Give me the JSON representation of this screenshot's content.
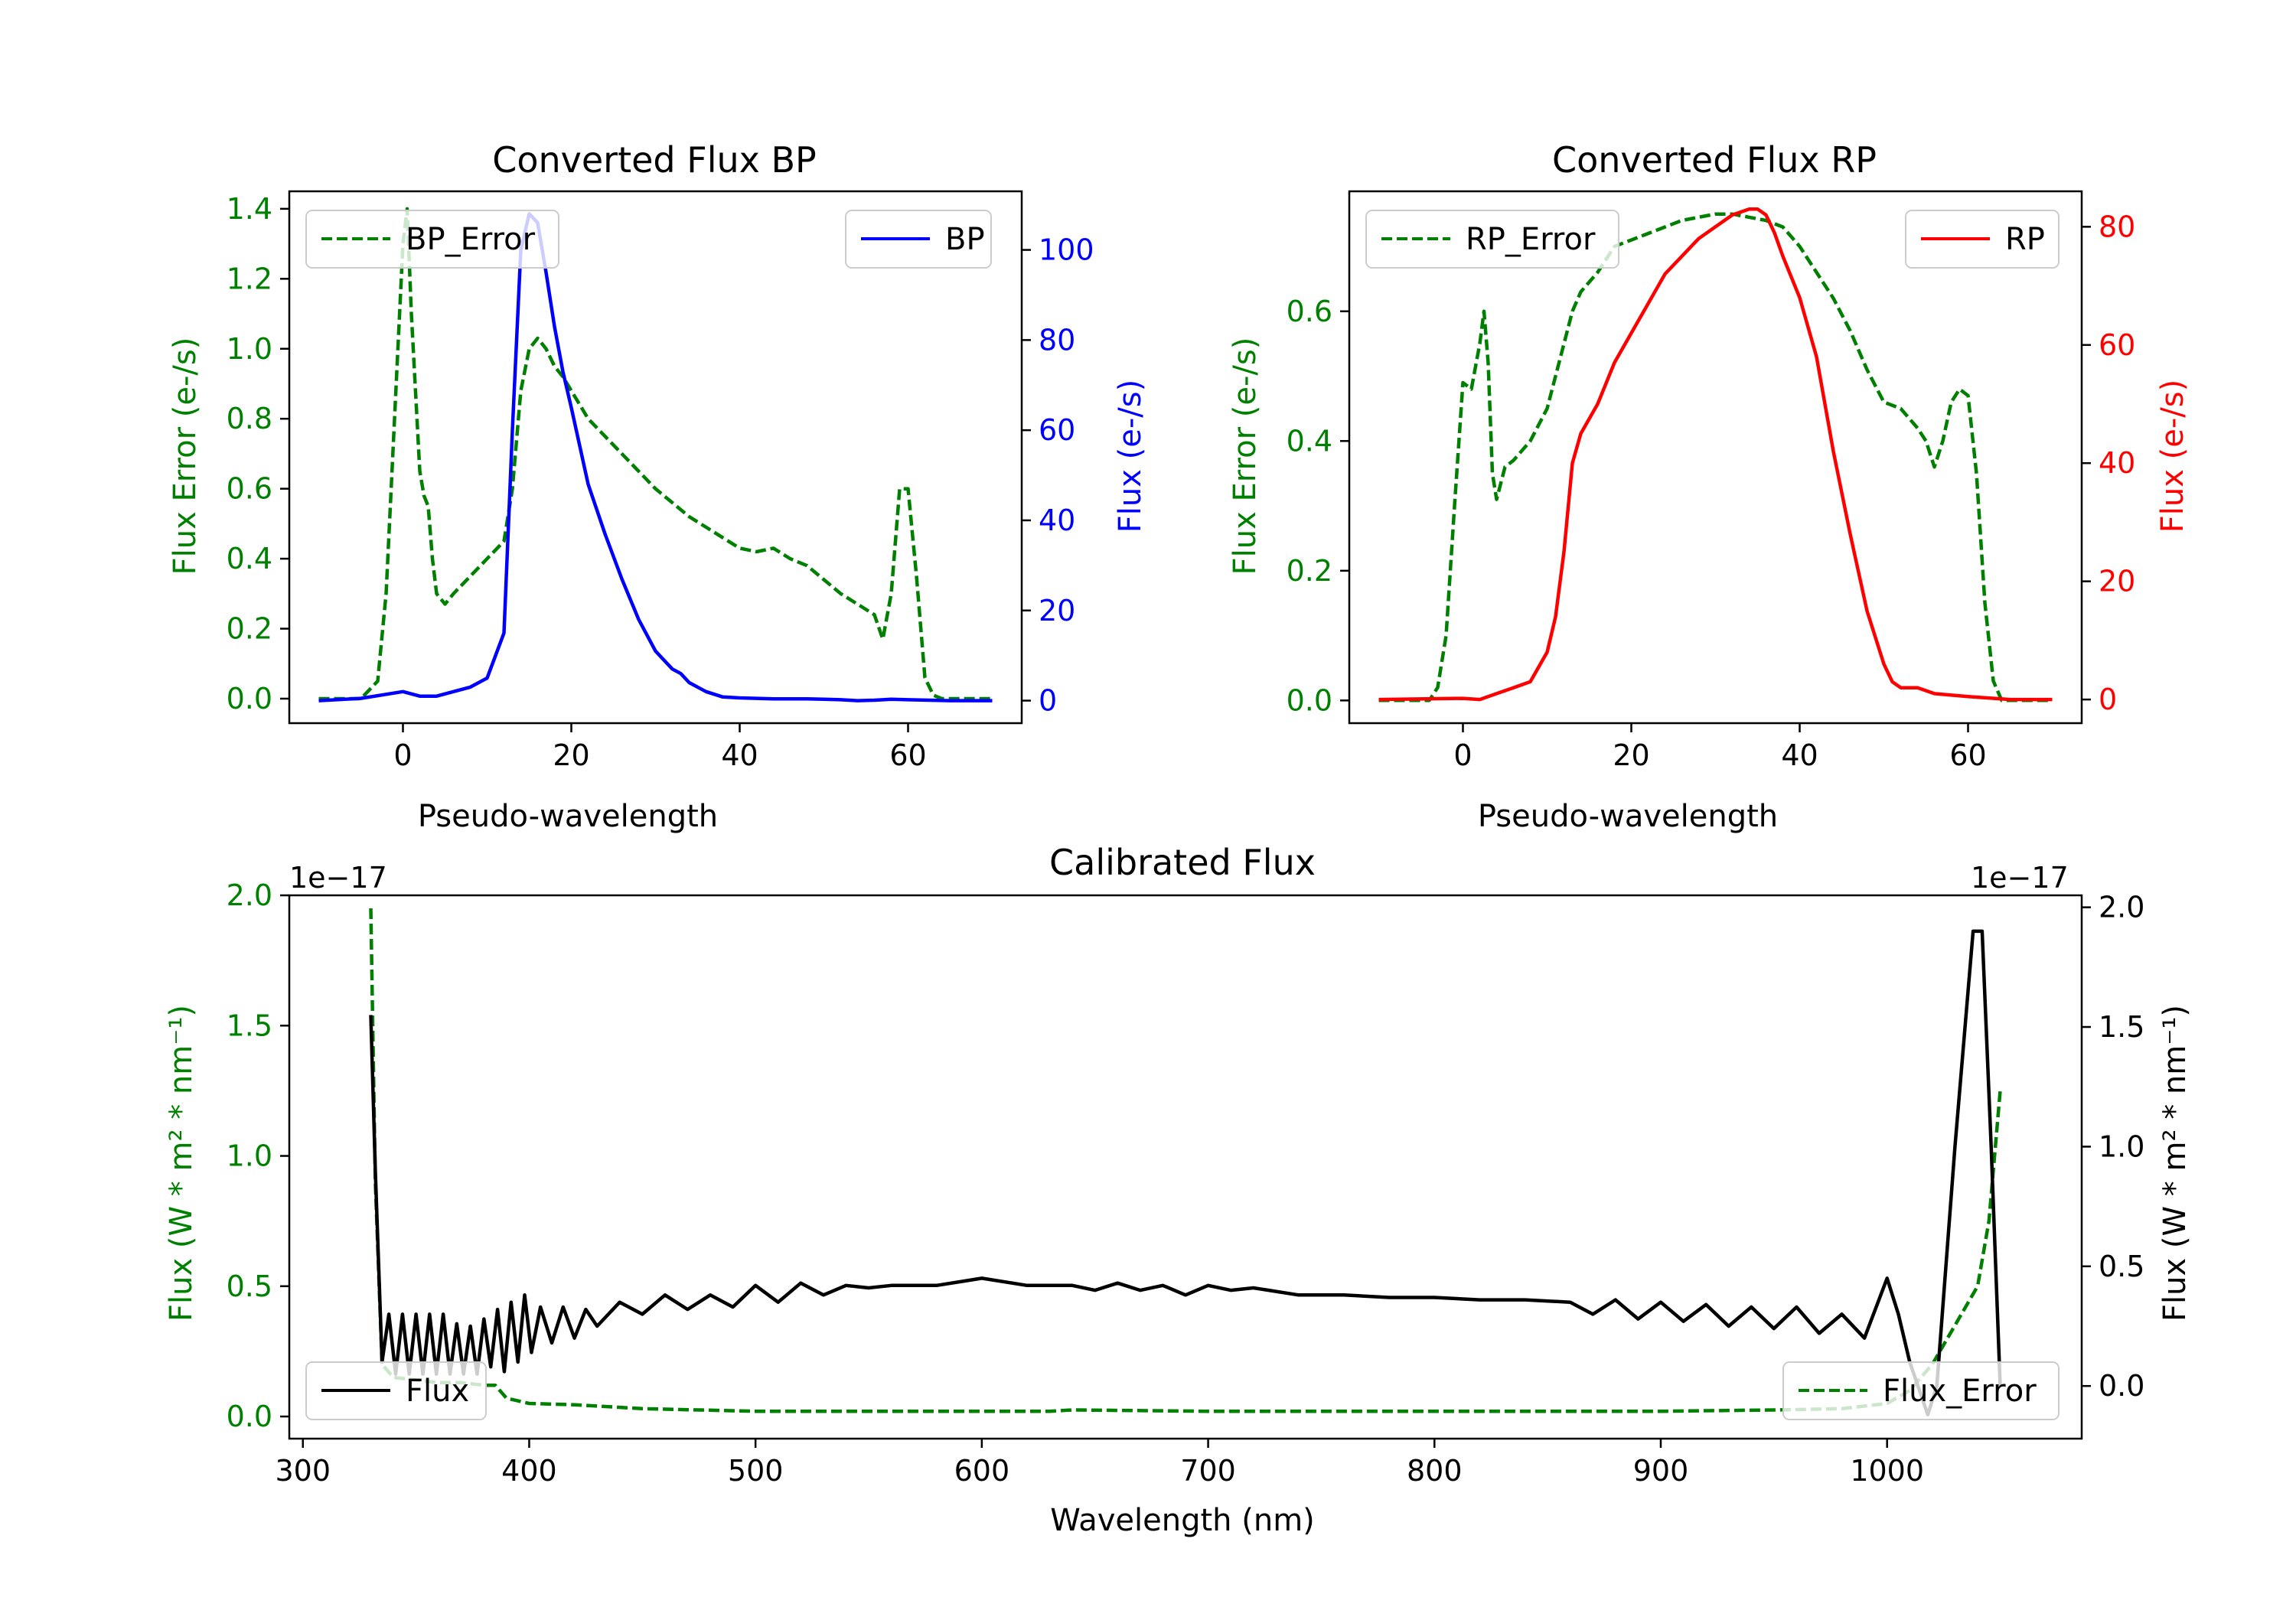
{
  "colors": {
    "green": "#008000",
    "blue": "#0000ff",
    "red": "#ff0000",
    "black": "#000000"
  },
  "chart_data": [
    {
      "id": "bp",
      "type": "line",
      "title": "Converted Flux BP",
      "xlabel": "Pseudo-wavelength",
      "ylabel_left": "Flux Error (e-/s)",
      "ylabel_right": "Flux (e-/s)",
      "xlim": [
        -13.5,
        73.5
      ],
      "ylim_left": [
        -0.07,
        1.45
      ],
      "ylim_right": [
        -5,
        113
      ],
      "x_ticks": [
        0,
        20,
        40,
        60
      ],
      "x_tick_labels": [
        "0",
        "20",
        "40",
        "60"
      ],
      "y_left_ticks": [
        0.0,
        0.2,
        0.4,
        0.6,
        0.8,
        1.0,
        1.2,
        1.4
      ],
      "y_left_tick_labels": [
        "0.0",
        "0.2",
        "0.4",
        "0.6",
        "0.8",
        "1.0",
        "1.2",
        "1.4"
      ],
      "y_right_ticks": [
        0,
        20,
        40,
        60,
        80,
        100
      ],
      "y_right_tick_labels": [
        "0",
        "20",
        "40",
        "60",
        "80",
        "100"
      ],
      "legend_left": "top-left",
      "legend_right": "top-right",
      "series": [
        {
          "name": "BP_Error",
          "axis": "left",
          "style": "dashed",
          "color": "#008000",
          "x": [
            -10,
            -5,
            -3,
            -2,
            -1,
            0,
            0.5,
            1,
            2,
            2.5,
            3,
            3.5,
            4,
            5,
            6,
            8,
            10,
            12,
            13,
            14,
            15,
            16,
            17,
            18,
            19,
            20,
            22,
            24,
            26,
            28,
            30,
            32,
            34,
            36,
            38,
            40,
            42,
            44,
            46,
            48,
            50,
            52,
            54,
            56,
            57,
            58,
            59,
            60,
            61,
            62,
            63,
            64,
            66,
            70
          ],
          "y": [
            0.0,
            0.0,
            0.05,
            0.3,
            0.8,
            1.3,
            1.4,
            1.1,
            0.65,
            0.58,
            0.55,
            0.4,
            0.3,
            0.27,
            0.3,
            0.35,
            0.4,
            0.45,
            0.6,
            0.88,
            1.0,
            1.03,
            1.0,
            0.95,
            0.92,
            0.88,
            0.8,
            0.75,
            0.7,
            0.65,
            0.6,
            0.56,
            0.52,
            0.49,
            0.46,
            0.43,
            0.42,
            0.43,
            0.4,
            0.38,
            0.34,
            0.3,
            0.27,
            0.24,
            0.17,
            0.3,
            0.6,
            0.6,
            0.35,
            0.06,
            0.01,
            0.0,
            0.0,
            0.0
          ]
        },
        {
          "name": "BP",
          "axis": "right",
          "style": "solid",
          "color": "#0000ff",
          "x": [
            -10,
            -5,
            0,
            2,
            4,
            6,
            8,
            10,
            12,
            13,
            14,
            15,
            16,
            17,
            18,
            19,
            20,
            22,
            24,
            26,
            28,
            30,
            32,
            33,
            34,
            36,
            38,
            40,
            44,
            48,
            50,
            52,
            54,
            56,
            58,
            60,
            65,
            70
          ],
          "y": [
            0,
            0.5,
            2,
            1,
            1,
            2,
            3,
            5,
            15,
            60,
            100,
            108,
            106,
            95,
            83,
            73,
            65,
            48,
            37,
            27,
            18,
            11,
            7,
            6,
            4,
            2,
            0.8,
            0.6,
            0.4,
            0.4,
            0.3,
            0.2,
            0,
            0.1,
            0.3,
            0.2,
            0,
            0
          ]
        }
      ]
    },
    {
      "id": "rp",
      "type": "line",
      "title": "Converted Flux RP",
      "xlabel": "Pseudo-wavelength",
      "ylabel_left": "Flux Error (e-/s)",
      "ylabel_right": "Flux (e-/s)",
      "xlim": [
        -13.5,
        73.5
      ],
      "ylim_left": [
        -0.035,
        0.785
      ],
      "ylim_right": [
        -4,
        86
      ],
      "x_ticks": [
        0,
        20,
        40,
        60
      ],
      "x_tick_labels": [
        "0",
        "20",
        "40",
        "60"
      ],
      "y_left_ticks": [
        0.0,
        0.2,
        0.4,
        0.6
      ],
      "y_left_tick_labels": [
        "0.0",
        "0.2",
        "0.4",
        "0.6"
      ],
      "y_right_ticks": [
        0,
        20,
        40,
        60,
        80
      ],
      "y_right_tick_labels": [
        "0",
        "20",
        "40",
        "60",
        "80"
      ],
      "legend_left": "top-left",
      "legend_right": "top-right",
      "series": [
        {
          "name": "RP_Error",
          "axis": "left",
          "style": "dashed",
          "color": "#008000",
          "x": [
            -10,
            -4,
            -3,
            -2,
            -1,
            0,
            1,
            2,
            2.5,
            3,
            3.5,
            4,
            5,
            6,
            8,
            10,
            12,
            13,
            14,
            16,
            18,
            20,
            22,
            24,
            26,
            28,
            30,
            32,
            34,
            36,
            38,
            40,
            42,
            44,
            46,
            48,
            50,
            52,
            54,
            55,
            56,
            57,
            58,
            59,
            60,
            61,
            62,
            63,
            64,
            66,
            70
          ],
          "y": [
            0.0,
            0.0,
            0.02,
            0.1,
            0.3,
            0.49,
            0.48,
            0.55,
            0.6,
            0.52,
            0.35,
            0.31,
            0.36,
            0.37,
            0.4,
            0.45,
            0.55,
            0.6,
            0.63,
            0.66,
            0.7,
            0.71,
            0.72,
            0.73,
            0.74,
            0.745,
            0.75,
            0.75,
            0.745,
            0.74,
            0.73,
            0.7,
            0.66,
            0.62,
            0.57,
            0.51,
            0.46,
            0.45,
            0.42,
            0.4,
            0.36,
            0.4,
            0.46,
            0.48,
            0.47,
            0.35,
            0.15,
            0.03,
            0.0,
            0.0,
            0.0
          ]
        },
        {
          "name": "RP",
          "axis": "right",
          "style": "solid",
          "color": "#ff0000",
          "x": [
            -10,
            0,
            2,
            4,
            6,
            8,
            10,
            11,
            12,
            13,
            14,
            16,
            18,
            20,
            22,
            24,
            26,
            28,
            30,
            32,
            34,
            35,
            36,
            37,
            38,
            40,
            42,
            44,
            46,
            48,
            50,
            51,
            52,
            54,
            56,
            60,
            65,
            70
          ],
          "y": [
            0,
            0.2,
            0,
            1,
            2,
            3,
            8,
            14,
            25,
            40,
            45,
            50,
            57,
            62,
            67,
            72,
            75,
            78,
            80,
            82,
            83,
            83,
            82,
            79,
            75,
            68,
            58,
            42,
            28,
            15,
            6,
            3,
            2,
            2,
            1,
            0.5,
            0,
            0
          ]
        }
      ]
    },
    {
      "id": "cal",
      "type": "line",
      "title": "Calibrated Flux",
      "xlabel": "Wavelength (nm)",
      "ylabel_left": "Flux (W * m² * nm⁻¹)",
      "ylabel_right": "Flux (W * m² * nm⁻¹)",
      "offset_left": "1e−17",
      "offset_right": "1e−17",
      "xlim": [
        294,
        1086
      ],
      "ylim_left": [
        -0.085,
        2.0
      ],
      "ylim_right": [
        -0.22,
        2.05
      ],
      "x_ticks": [
        300,
        400,
        500,
        600,
        700,
        800,
        900,
        1000
      ],
      "x_tick_labels": [
        "300",
        "400",
        "500",
        "600",
        "700",
        "800",
        "900",
        "1000"
      ],
      "y_left_ticks": [
        0.0,
        0.5,
        1.0,
        1.5,
        2.0
      ],
      "y_left_tick_labels": [
        "0.0",
        "0.5",
        "1.0",
        "1.5",
        "2.0"
      ],
      "y_right_ticks": [
        0.0,
        0.5,
        1.0,
        1.5,
        2.0
      ],
      "y_right_tick_labels": [
        "0.0",
        "0.5",
        "1.0",
        "1.5",
        "2.0"
      ],
      "legend_left": "bottom-left",
      "legend_right": "bottom-right",
      "series": [
        {
          "name": "Flux_Error",
          "axis": "left",
          "style": "dashed",
          "color": "#008000",
          "x": [
            330,
            332,
            335,
            340,
            350,
            360,
            370,
            380,
            385,
            390,
            400,
            420,
            450,
            500,
            550,
            600,
            630,
            640,
            700,
            800,
            900,
            950,
            980,
            1000,
            1010,
            1020,
            1030,
            1040,
            1045,
            1050
          ],
          "y": [
            1.95,
            0.9,
            0.2,
            0.15,
            0.14,
            0.13,
            0.13,
            0.12,
            0.12,
            0.07,
            0.05,
            0.045,
            0.03,
            0.02,
            0.02,
            0.02,
            0.02,
            0.025,
            0.02,
            0.02,
            0.02,
            0.025,
            0.03,
            0.05,
            0.1,
            0.2,
            0.35,
            0.5,
            0.75,
            1.25
          ]
        },
        {
          "name": "Flux",
          "axis": "right",
          "style": "solid",
          "color": "#000000",
          "x": [
            330,
            332,
            335,
            338,
            341,
            344,
            347,
            350,
            353,
            356,
            359,
            362,
            365,
            368,
            371,
            374,
            377,
            380,
            383,
            386,
            389,
            392,
            395,
            398,
            401,
            405,
            410,
            415,
            420,
            425,
            430,
            440,
            450,
            460,
            470,
            480,
            490,
            500,
            510,
            520,
            530,
            540,
            550,
            560,
            580,
            600,
            620,
            640,
            650,
            660,
            670,
            680,
            690,
            700,
            710,
            720,
            740,
            760,
            780,
            800,
            820,
            840,
            860,
            870,
            880,
            890,
            900,
            910,
            920,
            930,
            940,
            950,
            960,
            970,
            980,
            990,
            1000,
            1005,
            1010,
            1018,
            1022,
            1030,
            1038,
            1042,
            1046,
            1050
          ],
          "y": [
            1.55,
            0.9,
            0.1,
            0.3,
            0.05,
            0.3,
            0.05,
            0.3,
            0.05,
            0.3,
            0.05,
            0.3,
            0.05,
            0.26,
            0.05,
            0.25,
            0.05,
            0.28,
            0.08,
            0.32,
            0.06,
            0.35,
            0.1,
            0.38,
            0.14,
            0.33,
            0.18,
            0.33,
            0.2,
            0.32,
            0.25,
            0.35,
            0.3,
            0.38,
            0.32,
            0.38,
            0.33,
            0.42,
            0.35,
            0.43,
            0.38,
            0.42,
            0.41,
            0.42,
            0.42,
            0.45,
            0.42,
            0.42,
            0.4,
            0.43,
            0.4,
            0.42,
            0.38,
            0.42,
            0.4,
            0.41,
            0.38,
            0.38,
            0.37,
            0.37,
            0.36,
            0.36,
            0.35,
            0.3,
            0.36,
            0.28,
            0.35,
            0.27,
            0.34,
            0.25,
            0.33,
            0.24,
            0.33,
            0.22,
            0.3,
            0.2,
            0.45,
            0.3,
            0.1,
            -0.12,
            0.0,
            1.0,
            1.9,
            1.9,
            1.0,
            0.0
          ]
        }
      ]
    }
  ]
}
